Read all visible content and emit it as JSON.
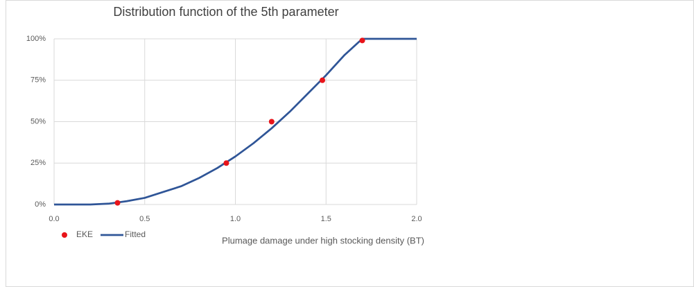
{
  "chart_data": {
    "type": "scatter",
    "title": "Distribution function of  the 5th parameter",
    "x_label": "Plumage damage under high stocking density (BT)",
    "xlim": [
      0,
      2
    ],
    "ylim": [
      0,
      100
    ],
    "xticks": [
      {
        "value": 0,
        "label": "0.0"
      },
      0.5,
      {
        "value": 1,
        "label": "1.0"
      },
      1.5,
      {
        "value": 2,
        "label": "2.0"
      }
    ],
    "yticks": [
      {
        "value": 0,
        "label": "0%"
      },
      {
        "value": 25,
        "label": "25%"
      },
      {
        "value": 50,
        "label": "50%"
      },
      {
        "value": 75,
        "label": "75%"
      },
      {
        "value": 100,
        "label": "100%"
      }
    ],
    "grid": true,
    "legend": "bottom-left",
    "series": [
      {
        "name": "EKE",
        "color": "#e8141a",
        "style": "markers",
        "x": [
          0.35,
          0.95,
          1.2,
          1.48,
          1.7
        ],
        "values": [
          1,
          25,
          50,
          75,
          99
        ]
      },
      {
        "name": "Fitted",
        "color": "#2f5597",
        "style": "line",
        "x": [
          0,
          0.1,
          0.2,
          0.3,
          0.4,
          0.5,
          0.6,
          0.7,
          0.8,
          0.9,
          1.0,
          1.1,
          1.2,
          1.3,
          1.4,
          1.5,
          1.6,
          1.7,
          1.8,
          1.9,
          2.0
        ],
        "values": [
          0,
          0,
          0,
          0.5,
          2,
          4,
          7.5,
          11,
          16,
          22,
          29,
          37,
          46,
          56,
          67,
          78,
          90,
          100,
          100,
          100,
          100
        ]
      }
    ]
  }
}
